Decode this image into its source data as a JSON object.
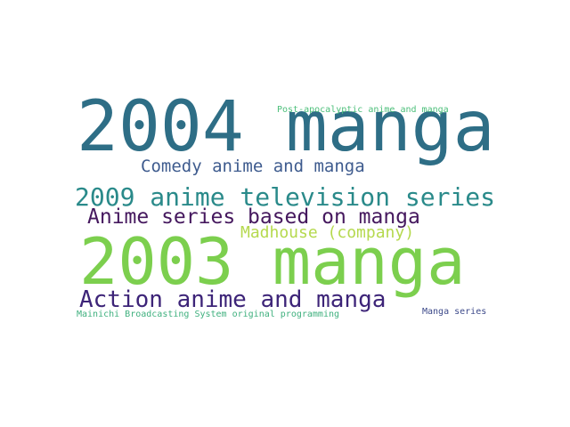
{
  "words": {
    "w2004": {
      "text": "2004 manga",
      "color": "#2e6e86"
    },
    "postapoc": {
      "text": "Post-apocalyptic anime and manga",
      "color": "#4cbf7a"
    },
    "comedy": {
      "text": "Comedy anime and manga",
      "color": "#3e5b8e"
    },
    "w2009": {
      "text": "2009 anime television series",
      "color": "#2a8a8a"
    },
    "animeseries": {
      "text": "Anime series based on manga",
      "color": "#45185e"
    },
    "madhouse": {
      "text": "Madhouse (company)",
      "color": "#b5d94e"
    },
    "w2003": {
      "text": "2003 manga",
      "color": "#7ccf4e"
    },
    "action": {
      "text": "Action anime and manga",
      "color": "#3d2478"
    },
    "mainichi": {
      "text": "Mainichi Broadcasting System original programming",
      "color": "#3fb07e"
    },
    "mangaseries": {
      "text": "Manga series",
      "color": "#3d4a8a"
    }
  }
}
